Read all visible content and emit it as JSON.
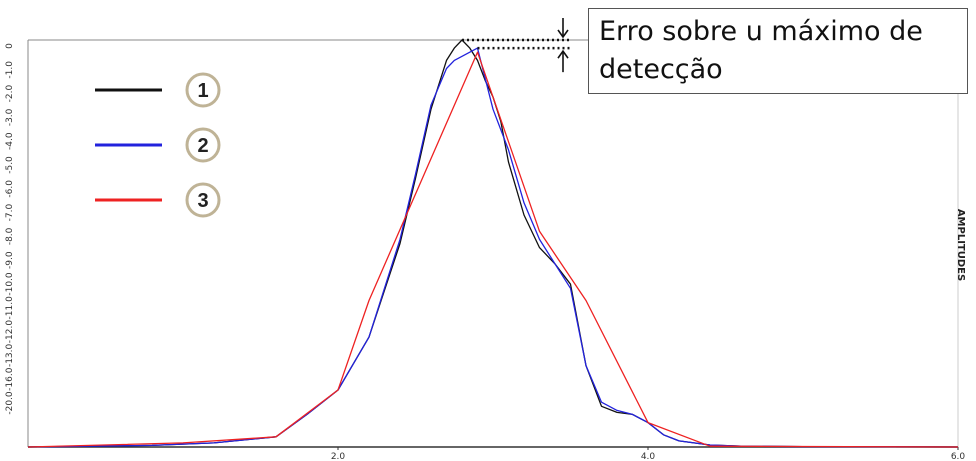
{
  "chart_data": {
    "type": "line",
    "x_ticks": [
      "2.0",
      "4.0",
      "6.0"
    ],
    "y_ticks": [
      "0",
      "-1.0",
      "-2.0",
      "-3.0",
      "-4.0",
      "-5.0",
      "-6.0",
      "-7.0",
      "-8.0",
      "-9.0",
      "-10.0",
      "-11.0",
      "-12.0",
      "-13.0",
      "-16.0",
      "-20.0"
    ],
    "ylabel": "AMPLITUDES",
    "annotation": "Erro sobre u máximo de detecção",
    "annotation_lines": [
      "Erro sobre u máximo de",
      "detecção"
    ],
    "xlim": [
      0,
      6.0
    ],
    "ylim": [
      0,
      1.0
    ],
    "series": [
      {
        "name": "1",
        "color": "#111111",
        "x": [
          0,
          0.8,
          1.2,
          1.6,
          1.8,
          2.0,
          2.2,
          2.4,
          2.5,
          2.6,
          2.7,
          2.75,
          2.8,
          2.85,
          2.9,
          2.95,
          3.0,
          3.05,
          3.1,
          3.2,
          3.3,
          3.4,
          3.5,
          3.6,
          3.7,
          3.8,
          3.9,
          4.0,
          4.1,
          4.2,
          4.4,
          4.6,
          5.0,
          6.0
        ],
        "y": [
          0.0,
          0.004,
          0.01,
          0.025,
          0.08,
          0.14,
          0.27,
          0.5,
          0.66,
          0.83,
          0.95,
          0.98,
          1.0,
          0.98,
          0.95,
          0.9,
          0.86,
          0.8,
          0.7,
          0.57,
          0.49,
          0.45,
          0.4,
          0.2,
          0.1,
          0.085,
          0.08,
          0.06,
          0.03,
          0.015,
          0.005,
          0.002,
          0.001,
          0.0
        ]
      },
      {
        "name": "2",
        "color": "#2222dd",
        "x": [
          0,
          0.8,
          1.2,
          1.6,
          1.8,
          2.0,
          2.2,
          2.4,
          2.5,
          2.6,
          2.7,
          2.75,
          2.9,
          3.0,
          3.1,
          3.2,
          3.3,
          3.4,
          3.5,
          3.6,
          3.7,
          3.8,
          3.9,
          4.0,
          4.1,
          4.2,
          4.4,
          4.6,
          5.0,
          6.0
        ],
        "y": [
          0.0,
          0.004,
          0.01,
          0.025,
          0.08,
          0.14,
          0.27,
          0.51,
          0.67,
          0.84,
          0.93,
          0.95,
          0.98,
          0.83,
          0.73,
          0.6,
          0.51,
          0.45,
          0.39,
          0.2,
          0.11,
          0.09,
          0.08,
          0.06,
          0.03,
          0.015,
          0.005,
          0.002,
          0.001,
          0.0
        ]
      },
      {
        "name": "3",
        "color": "#ee2222",
        "x": [
          0,
          1.0,
          1.6,
          2.0,
          2.2,
          2.9,
          3.3,
          3.6,
          4.0,
          4.4,
          6.0
        ],
        "y": [
          0.0,
          0.01,
          0.025,
          0.14,
          0.36,
          0.97,
          0.53,
          0.36,
          0.06,
          0.002,
          0.0
        ]
      }
    ],
    "legend": [
      "1",
      "2",
      "3"
    ],
    "legend_position": "top-left",
    "grid": false
  }
}
